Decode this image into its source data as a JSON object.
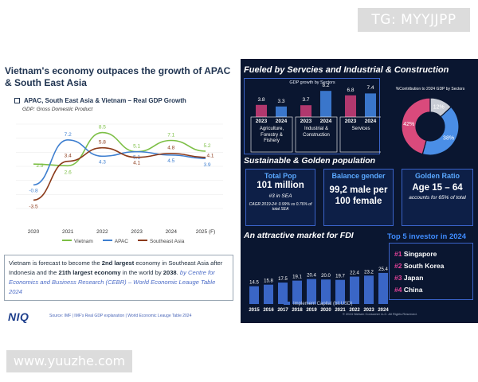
{
  "watermarks": {
    "top": "TG: MYYJJPP",
    "bottom": "www.yuuzhe.com"
  },
  "left": {
    "title": "Vietnam's economy outpaces the growth of APAC & South East Asia",
    "chart_title": "APAC, South East Asia & Vietnam – Real GDP Growth",
    "note": "GDP: Gross Domestic Product",
    "text_1": "Vietnam is forecast to become the ",
    "text_bold_1": "2nd largest",
    "text_2": " economy in Southeast Asia after Indonesia and the ",
    "text_bold_2": "21th largest economy",
    "text_3": " in the world by ",
    "text_bold_3": "2038",
    "text_4": ".",
    "cebr": "by Centre for Economics and Business Research (CEBR) – World Economic Leauge Table 2024",
    "logo": "NIQ",
    "source": "Source: IMF | IMF's Real GDP explanation | World Economic Leauge Table 2024"
  },
  "chart_data": [
    {
      "type": "line",
      "title": "APAC, South East Asia & Vietnam – Real GDP Growth",
      "categories": [
        "2020",
        "2021",
        "2022",
        "2023",
        "2024",
        "2025 (F)"
      ],
      "series": [
        {
          "name": "Vietnam",
          "color": "#7cbf45",
          "values": [
            2.9,
            2.6,
            8.5,
            5.1,
            7.1,
            5.2
          ]
        },
        {
          "name": "APAC",
          "color": "#3e7fd0",
          "values": [
            -0.8,
            7.2,
            4.3,
            5.1,
            4.5,
            3.9
          ]
        },
        {
          "name": "Southeast Asia",
          "color": "#8b3a1a",
          "values": [
            -3.5,
            3.4,
            5.8,
            4.1,
            4.8,
            4.1
          ]
        }
      ],
      "ylim": [
        -5,
        10
      ],
      "xlabel": "",
      "ylabel": ""
    },
    {
      "type": "bar",
      "title": "GDP growth by Sectors",
      "categories": [
        "Agriculture, Forestry & Fishery",
        "Industrial & Construction",
        "Services"
      ],
      "series": [
        {
          "name": "2023",
          "values": [
            3.8,
            3.7,
            6.8
          ]
        },
        {
          "name": "2024",
          "values": [
            3.3,
            8.2,
            7.4
          ]
        }
      ]
    },
    {
      "type": "pie",
      "title": "%Contribution to 2024 GDP by Sectors",
      "labels": [
        "Agriculture, Forestry & Fishery",
        "Industrial & Construction",
        "Services"
      ],
      "values": [
        12,
        38,
        42
      ],
      "display": [
        "12%",
        "38%",
        "42%"
      ],
      "colors": [
        "#c9cdd6",
        "#4a8ee6",
        "#d94a7c"
      ]
    },
    {
      "type": "bar",
      "title": "An attractive market for FDI",
      "categories": [
        "2015",
        "2016",
        "2017",
        "2018",
        "2019",
        "2020",
        "2021",
        "2022",
        "2023",
        "2024"
      ],
      "values": [
        14.5,
        15.8,
        17.5,
        19.1,
        20.4,
        20.0,
        19.7,
        22.4,
        23.2,
        25.4
      ],
      "display": [
        "14.5",
        "15.8",
        "17.5",
        "19.1",
        "20.4",
        "20.0",
        "19.7",
        "22.4",
        "23.2",
        "25.4"
      ],
      "legend": "Implement Capital (bil.USD)"
    }
  ],
  "right": {
    "title_1": "Fueled by Servcies and Industrial & Construction",
    "sector_labels": [
      "Agriculture, Forestry & Fishery",
      "Industrial & Construction",
      "Services"
    ],
    "title_2": "Sustainable & Golden population",
    "cards": [
      {
        "head": "Total Pop",
        "big": "101 million",
        "small": "#3 in SEA",
        "tiny": "CAGR 2019-24: 0.99% vs 0.76% of total SEA"
      },
      {
        "head": "Balance gender",
        "big": "99,2 male per 100 female"
      },
      {
        "head": "Golden Ratio",
        "big": "Age 15 – 64",
        "small": "accounts for 65% of total"
      }
    ],
    "title_3": "An attractive market for FDI",
    "investor_title": "Top 5 investor in 2024",
    "investors": [
      {
        "rank": "#1",
        "name": "Singapore"
      },
      {
        "rank": "#2",
        "name": "South Korea"
      },
      {
        "rank": "#3",
        "name": "Japan"
      },
      {
        "rank": "#4",
        "name": "China"
      }
    ],
    "copyright": "© 2024 Nielsen Consumer LLC. All Rights Reserved."
  }
}
